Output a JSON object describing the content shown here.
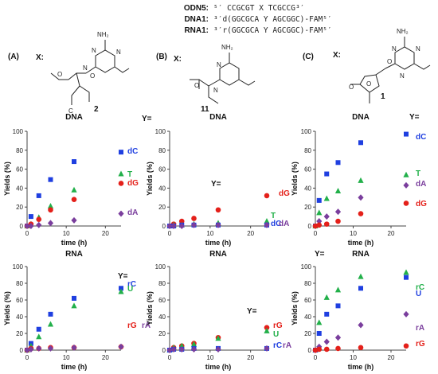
{
  "sequences": [
    {
      "name": "ODN5:",
      "seq": "⁵′ CCGCGT X TCGCCG³′"
    },
    {
      "name": "DNA1:",
      "seq": "³′d(GGCGCA Y AGCGGC)-FAM⁵′"
    },
    {
      "name": "RNA1:",
      "seq": "³′r(GGCGCA Y AGCGGC)-FAM⁵′"
    }
  ],
  "structures": [
    {
      "panel": "(A)",
      "x_label": "X:",
      "number": "2",
      "atoms": {
        "nh2": "NH₂",
        "o": "O",
        "n1": "N",
        "n2": "N",
        "n3": "N",
        "c": "C"
      }
    },
    {
      "panel": "(B)",
      "x_label": "X:",
      "number": "11",
      "atoms": {
        "nh2": "NH₂",
        "o": "O",
        "n1": "N",
        "n2": "N"
      }
    },
    {
      "panel": "(C)",
      "x_label": "X:",
      "number": "1",
      "atoms": {
        "nh2": "NH₂",
        "o": "O",
        "o_ring": "O",
        "o_b": "O",
        "n1": "N",
        "n2": "N",
        "n3": "N"
      }
    }
  ],
  "colors": {
    "blue": "#1f3fe0",
    "green": "#22b04a",
    "red": "#e4201a",
    "purple": "#7a3e9d"
  },
  "chart_data": [
    {
      "type": "scatter",
      "title": "DNA",
      "xlabel": "time (h)",
      "ylabel": "Yields (%)",
      "xlim": [
        0,
        24
      ],
      "ylim": [
        0,
        100
      ],
      "xticks": [
        "0",
        "10",
        "20"
      ],
      "yticks": [
        "0",
        "20",
        "40",
        "60",
        "80",
        "100"
      ],
      "y_label": "Y=",
      "series": [
        {
          "name": "dC",
          "marker": "square",
          "color": "#1f3fe0",
          "x": [
            0,
            1,
            3,
            6,
            12,
            24
          ],
          "y": [
            0,
            10,
            32,
            49,
            68,
            78
          ]
        },
        {
          "name": "T",
          "marker": "triangle",
          "color": "#22b04a",
          "x": [
            0,
            1,
            3,
            6,
            12,
            24
          ],
          "y": [
            0,
            2,
            9,
            21,
            38,
            55
          ]
        },
        {
          "name": "dG",
          "marker": "circle",
          "color": "#e4201a",
          "x": [
            0,
            1,
            3,
            6,
            12,
            24
          ],
          "y": [
            0,
            2,
            7,
            17,
            28,
            45
          ]
        },
        {
          "name": "dA",
          "marker": "diamond",
          "color": "#7a3e9d",
          "x": [
            0,
            1,
            3,
            6,
            12,
            24
          ],
          "y": [
            0,
            0,
            1,
            3,
            6,
            13
          ]
        }
      ]
    },
    {
      "type": "scatter",
      "title": "DNA",
      "xlabel": "time (h)",
      "ylabel": "Yields (%)",
      "xlim": [
        0,
        24
      ],
      "ylim": [
        0,
        100
      ],
      "xticks": [
        "0",
        "10",
        "20"
      ],
      "yticks": [
        "0",
        "20",
        "40",
        "60",
        "80",
        "100"
      ],
      "y_label": "Y=",
      "series": [
        {
          "name": "dG",
          "marker": "circle",
          "color": "#e4201a",
          "x": [
            0,
            1,
            3,
            6,
            12,
            24
          ],
          "y": [
            0,
            2,
            5,
            8,
            17,
            32
          ]
        },
        {
          "name": "T",
          "marker": "triangle",
          "color": "#22b04a",
          "x": [
            0,
            1,
            3,
            6,
            12,
            24
          ],
          "y": [
            0,
            1,
            1,
            2,
            3,
            5
          ]
        },
        {
          "name": "dC",
          "marker": "square",
          "color": "#1f3fe0",
          "x": [
            0,
            1,
            3,
            6,
            12,
            24
          ],
          "y": [
            0,
            0,
            1,
            1,
            1,
            1
          ]
        },
        {
          "name": "dA",
          "marker": "diamond",
          "color": "#7a3e9d",
          "x": [
            0,
            1,
            3,
            6,
            12,
            24
          ],
          "y": [
            0,
            0,
            0,
            1,
            1,
            1
          ]
        }
      ]
    },
    {
      "type": "scatter",
      "title": "DNA",
      "xlabel": "time (h)",
      "ylabel": "Yields (%)",
      "xlim": [
        0,
        24
      ],
      "ylim": [
        0,
        100
      ],
      "xticks": [
        "0",
        "10",
        "20"
      ],
      "yticks": [
        "0",
        "20",
        "40",
        "60",
        "80",
        "100"
      ],
      "y_label": "Y=",
      "series": [
        {
          "name": "dC",
          "marker": "square",
          "color": "#1f3fe0",
          "x": [
            0,
            1,
            3,
            6,
            12,
            24
          ],
          "y": [
            0,
            27,
            55,
            67,
            88,
            97
          ]
        },
        {
          "name": "T",
          "marker": "triangle",
          "color": "#22b04a",
          "x": [
            0,
            1,
            3,
            6,
            12,
            24
          ],
          "y": [
            0,
            14,
            29,
            37,
            48,
            54
          ]
        },
        {
          "name": "dA",
          "marker": "diamond",
          "color": "#7a3e9d",
          "x": [
            0,
            1,
            3,
            6,
            12,
            24
          ],
          "y": [
            0,
            5,
            10,
            15,
            30,
            43
          ]
        },
        {
          "name": "dG",
          "marker": "circle",
          "color": "#e4201a",
          "x": [
            0,
            1,
            3,
            6,
            12,
            24
          ],
          "y": [
            0,
            1,
            2,
            5,
            13,
            24
          ]
        }
      ]
    },
    {
      "type": "scatter",
      "title": "RNA",
      "xlabel": "time (h)",
      "ylabel": "Yields (%)",
      "xlim": [
        0,
        24
      ],
      "ylim": [
        0,
        100
      ],
      "xticks": [
        "0",
        "10",
        "20"
      ],
      "yticks": [
        "0",
        "20",
        "40",
        "60",
        "80",
        "100"
      ],
      "y_label": "Y=",
      "series": [
        {
          "name": "rC",
          "marker": "square",
          "color": "#1f3fe0",
          "x": [
            0,
            1,
            3,
            6,
            12,
            24
          ],
          "y": [
            0,
            8,
            25,
            43,
            62,
            74
          ]
        },
        {
          "name": "U",
          "marker": "triangle",
          "color": "#22b04a",
          "x": [
            0,
            1,
            3,
            6,
            12,
            24
          ],
          "y": [
            0,
            5,
            16,
            31,
            53,
            70
          ]
        },
        {
          "name": "rG",
          "marker": "circle",
          "color": "#e4201a",
          "x": [
            0,
            1,
            3,
            6,
            12,
            24
          ],
          "y": [
            0,
            2,
            2,
            3,
            3,
            4
          ]
        },
        {
          "name": "rA",
          "marker": "diamond",
          "color": "#7a3e9d",
          "x": [
            0,
            1,
            3,
            6,
            12,
            24
          ],
          "y": [
            0,
            1,
            2,
            2,
            3,
            4
          ]
        }
      ]
    },
    {
      "type": "scatter",
      "title": "RNA",
      "xlabel": "time (h)",
      "ylabel": "Yields (%)",
      "xlim": [
        0,
        24
      ],
      "ylim": [
        0,
        100
      ],
      "xticks": [
        "0",
        "10",
        "20"
      ],
      "yticks": [
        "0",
        "20",
        "40",
        "60",
        "80",
        "100"
      ],
      "y_label": "Y=",
      "series": [
        {
          "name": "rG",
          "marker": "circle",
          "color": "#e4201a",
          "x": [
            0,
            1,
            3,
            6,
            12,
            24
          ],
          "y": [
            0,
            3,
            5,
            8,
            15,
            27
          ]
        },
        {
          "name": "U",
          "marker": "triangle",
          "color": "#22b04a",
          "x": [
            0,
            1,
            3,
            6,
            12,
            24
          ],
          "y": [
            0,
            3,
            5,
            7,
            14,
            23
          ]
        },
        {
          "name": "rC",
          "marker": "square",
          "color": "#1f3fe0",
          "x": [
            0,
            1,
            3,
            6,
            12,
            24
          ],
          "y": [
            0,
            1,
            1,
            2,
            2,
            2
          ]
        },
        {
          "name": "rA",
          "marker": "diamond",
          "color": "#7a3e9d",
          "x": [
            0,
            1,
            3,
            6,
            12,
            24
          ],
          "y": [
            0,
            1,
            1,
            1,
            1,
            2
          ]
        }
      ]
    },
    {
      "type": "scatter",
      "title": "RNA",
      "xlabel": "time (h)",
      "ylabel": "Yields (%)",
      "xlim": [
        0,
        24
      ],
      "ylim": [
        0,
        100
      ],
      "xticks": [
        "0",
        "10",
        "20"
      ],
      "yticks": [
        "0",
        "20",
        "40",
        "60",
        "80",
        "100"
      ],
      "y_label": "Y=",
      "series": [
        {
          "name": "rC",
          "marker": "triangle",
          "color": "#22b04a",
          "x": [
            0,
            1,
            3,
            6,
            12,
            24
          ],
          "y": [
            0,
            33,
            63,
            72,
            88,
            93
          ]
        },
        {
          "name": "U",
          "marker": "square",
          "color": "#1f3fe0",
          "x": [
            0,
            1,
            3,
            6,
            12,
            24
          ],
          "y": [
            0,
            20,
            43,
            53,
            74,
            87
          ]
        },
        {
          "name": "rA",
          "marker": "diamond",
          "color": "#7a3e9d",
          "x": [
            0,
            1,
            3,
            6,
            12,
            24
          ],
          "y": [
            0,
            4,
            10,
            15,
            30,
            43
          ]
        },
        {
          "name": "rG",
          "marker": "circle",
          "color": "#e4201a",
          "x": [
            0,
            1,
            3,
            6,
            12,
            24
          ],
          "y": [
            0,
            1,
            1,
            2,
            3,
            5
          ]
        }
      ]
    }
  ]
}
